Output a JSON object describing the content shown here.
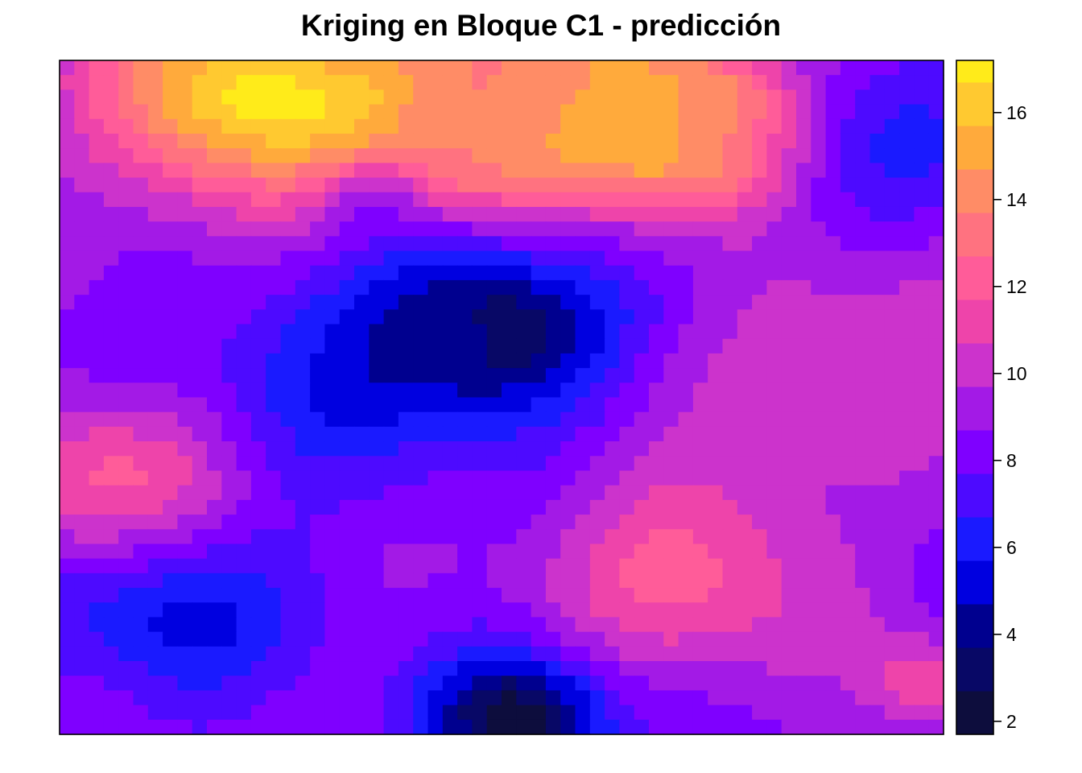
{
  "chart_data": {
    "type": "heatmap",
    "title": "Kriging en Bloque C1 - predicción",
    "xlabel": "",
    "ylabel": "",
    "colorbar": {
      "ticks": [
        2,
        4,
        6,
        8,
        10,
        12,
        14,
        16
      ],
      "range": [
        1.7,
        17.2
      ],
      "breaks": [
        1.7,
        2.7,
        3.7,
        4.7,
        5.7,
        6.7,
        7.7,
        8.7,
        9.7,
        10.7,
        11.7,
        12.7,
        13.7,
        14.7,
        15.7,
        16.7,
        17.2
      ],
      "colors": [
        "#0D0D3D",
        "#080866",
        "#00008F",
        "#0000E0",
        "#1A1AFF",
        "#4D0AFF",
        "#7F00FF",
        "#A31AE6",
        "#CC33CC",
        "#EE44AA",
        "#FF5C99",
        "#FF7280",
        "#FF8C66",
        "#FFAA3C",
        "#FFC930",
        "#FFEB1A",
        "#FFFF55"
      ]
    },
    "grid": false,
    "field": {
      "description_hotspots": [
        {
          "x": 0.21,
          "y": 0.05,
          "value": 16.8,
          "r": 0.12
        },
        {
          "x": 0.44,
          "y": 0.1,
          "value": 12.5,
          "r": 0.09
        },
        {
          "x": 0.58,
          "y": 0.06,
          "value": 13.5,
          "r": 0.12
        },
        {
          "x": 0.73,
          "y": 0.1,
          "value": 15.5,
          "r": 0.08
        },
        {
          "x": 0.5,
          "y": 0.4,
          "value": 3.0,
          "r": 0.09
        },
        {
          "x": 0.32,
          "y": 0.45,
          "value": 5.8,
          "r": 0.12
        },
        {
          "x": 0.35,
          "y": 0.2,
          "value": 6.5,
          "r": 0.04
        },
        {
          "x": 0.9,
          "y": 0.15,
          "value": 6.2,
          "r": 0.1
        },
        {
          "x": 0.91,
          "y": 0.42,
          "value": 11.0,
          "r": 0.12
        },
        {
          "x": 0.06,
          "y": 0.63,
          "value": 12.5,
          "r": 0.1
        },
        {
          "x": 0.12,
          "y": 0.8,
          "value": 5.0,
          "r": 0.1
        },
        {
          "x": 0.52,
          "y": 0.98,
          "value": 2.0,
          "r": 0.07
        },
        {
          "x": 0.72,
          "y": 0.75,
          "value": 12.0,
          "r": 0.12
        },
        {
          "x": 0.98,
          "y": 0.93,
          "value": 11.5,
          "r": 0.05
        }
      ]
    }
  }
}
